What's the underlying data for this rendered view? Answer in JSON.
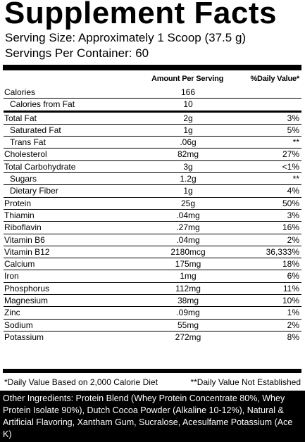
{
  "title": "Supplement Facts",
  "serving_size": "Serving Size: Approximately 1 Scoop (37.5 g)",
  "servings_per_container": "Servings Per Container: 60",
  "headers": {
    "amount": "Amount Per Serving",
    "dv": "%Daily Value*"
  },
  "rows": [
    {
      "label": "Calories",
      "amount": "166",
      "dv": "",
      "indent": false,
      "border": "none"
    },
    {
      "label": "Calories from Fat",
      "amount": "10",
      "dv": "",
      "indent": true,
      "border": "thin"
    },
    {
      "label": "Total Fat",
      "amount": "2g",
      "dv": "3%",
      "indent": false,
      "border": "med"
    },
    {
      "label": "Saturated Fat",
      "amount": "1g",
      "dv": "5%",
      "indent": true,
      "border": "thin"
    },
    {
      "label": "Trans Fat",
      "amount": ".06g",
      "dv": "**",
      "indent": true,
      "border": "thin"
    },
    {
      "label": "Cholesterol",
      "amount": "82mg",
      "dv": "27%",
      "indent": false,
      "border": "thin"
    },
    {
      "label": "Total Carbohydrate",
      "amount": "3g",
      "dv": "<1%",
      "indent": false,
      "border": "thin"
    },
    {
      "label": "Sugars",
      "amount": "1.2g",
      "dv": "**",
      "indent": true,
      "border": "thin"
    },
    {
      "label": "Dietary Fiber",
      "amount": "1g",
      "dv": "4%",
      "indent": true,
      "border": "thin"
    },
    {
      "label": "Protein",
      "amount": "25g",
      "dv": "50%",
      "indent": false,
      "border": "thin"
    },
    {
      "label": "Thiamin",
      "amount": ".04mg",
      "dv": "3%",
      "indent": false,
      "border": "thin"
    },
    {
      "label": "Riboflavin",
      "amount": ".27mg",
      "dv": "16%",
      "indent": false,
      "border": "thin"
    },
    {
      "label": "Vitamin B6",
      "amount": ".04mg",
      "dv": "2%",
      "indent": false,
      "border": "thin"
    },
    {
      "label": "Vitamin B12",
      "amount": "2180mcg",
      "dv": "36,333%",
      "indent": false,
      "border": "thin"
    },
    {
      "label": "Calcium",
      "amount": "175mg",
      "dv": "18%",
      "indent": false,
      "border": "thin"
    },
    {
      "label": "Iron",
      "amount": "1mg",
      "dv": "6%",
      "indent": false,
      "border": "thin"
    },
    {
      "label": "Phosphorus",
      "amount": "112mg",
      "dv": "11%",
      "indent": false,
      "border": "thin"
    },
    {
      "label": "Magnesium",
      "amount": "38mg",
      "dv": "10%",
      "indent": false,
      "border": "thin"
    },
    {
      "label": "Zinc",
      "amount": ".09mg",
      "dv": "1%",
      "indent": false,
      "border": "thin"
    },
    {
      "label": "Sodium",
      "amount": "55mg",
      "dv": "2%",
      "indent": false,
      "border": "thin"
    },
    {
      "label": "Potassium",
      "amount": "272mg",
      "dv": "8%",
      "indent": false,
      "border": "thin"
    }
  ],
  "footnotes": {
    "dv_basis": "*Daily Value Based on 2,000 Calorie Diet",
    "not_established": "**Daily Value Not Established"
  },
  "other_ingredients": "Other Ingredients: Protein Blend (Whey Protein Concentrate 80%, Whey Protein Isolate 90%), Dutch Cocoa Powder (Alkaline 10-12%), Natural & Artificial Flavoring, Xantham Gum, Sucralose, Acesulfame Potassium (Ace K)"
}
